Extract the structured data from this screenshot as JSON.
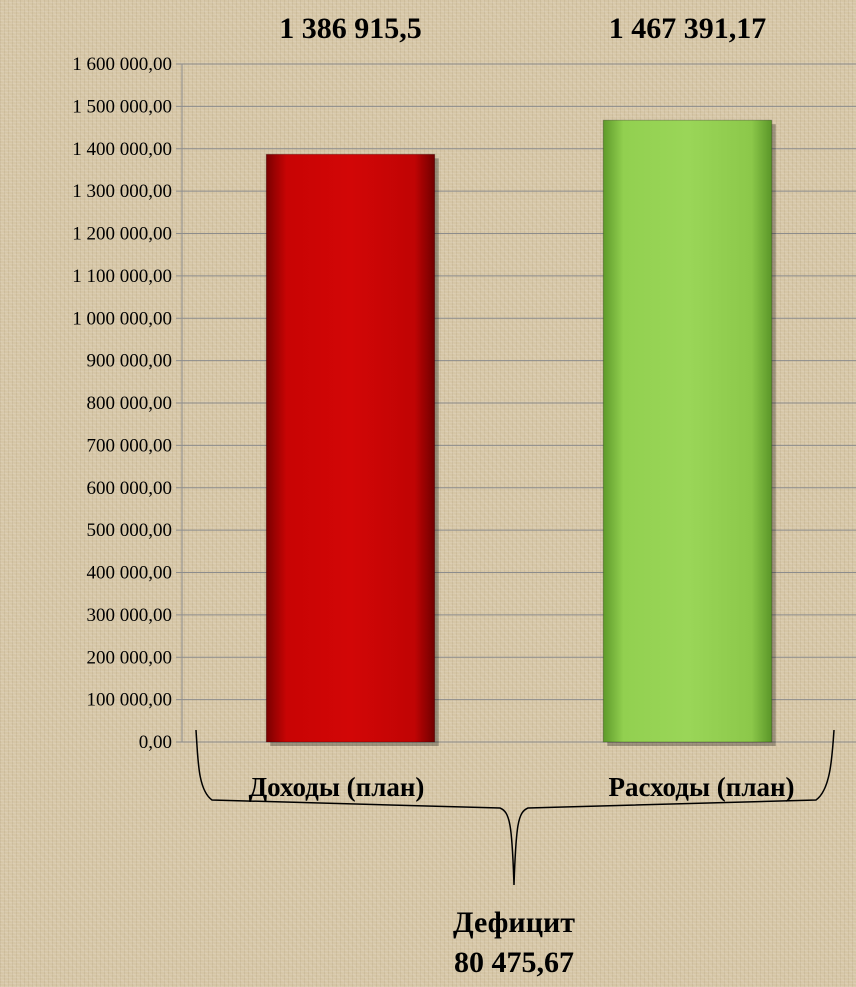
{
  "chart_data": {
    "type": "bar",
    "title": "",
    "xlabel": "",
    "ylabel": "",
    "categories": [
      "Доходы (план)",
      "Расходы (план)"
    ],
    "values": [
      1386915.5,
      1467391.17
    ],
    "value_labels": [
      "1 386 915,5",
      "1 467 391,17"
    ],
    "bar_colors": [
      "#c80404",
      "#92d050"
    ],
    "ylim": [
      0,
      1600000
    ],
    "ytick_step": 100000,
    "ytick_labels": [
      "0,00",
      "100 000,00",
      "200 000,00",
      "300 000,00",
      "400 000,00",
      "500 000,00",
      "600 000,00",
      "700 000,00",
      "800 000,00",
      "900 000,00",
      "1 000 000,00",
      "1 100 000,00",
      "1 200 000,00",
      "1 300 000,00",
      "1 400 000,00",
      "1 500 000,00",
      "1 600 000,00"
    ],
    "grid": true,
    "legend": "none",
    "annotation": {
      "label": "Дефицит",
      "value": "80 475,67"
    }
  }
}
